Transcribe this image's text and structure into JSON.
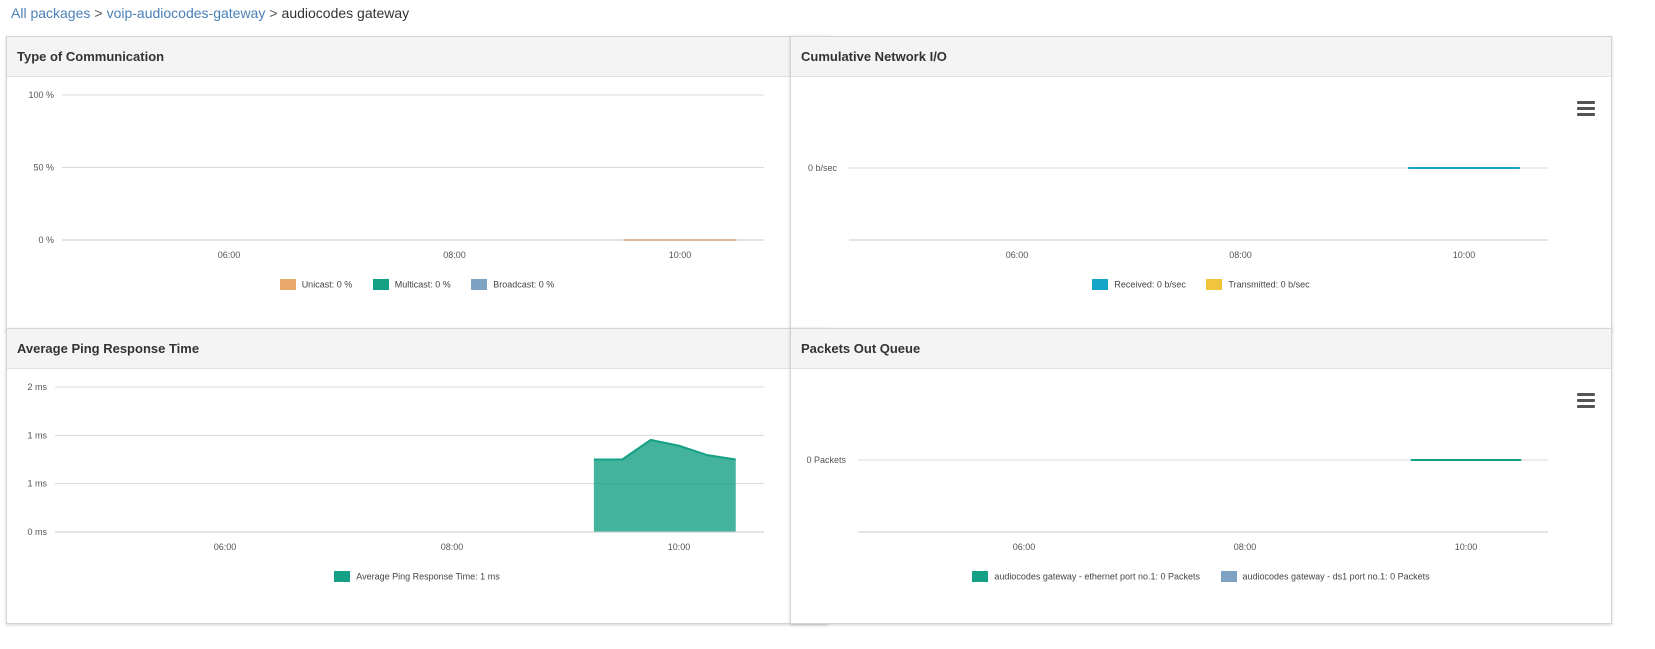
{
  "breadcrumb": {
    "items": [
      "All packages",
      "voip-audiocodes-gateway"
    ],
    "current": "audiocodes gateway",
    "separator": ">"
  },
  "colors": {
    "unicast": "#e8a86c",
    "multicast": "#14a085",
    "broadcast": "#7ea3c2",
    "received": "#14a5c8",
    "transmitted": "#f0c43c",
    "ping": "#14a085",
    "eth_port": "#14a085",
    "ds1_port": "#7ea3c2"
  },
  "panels": {
    "type_of_communication": {
      "title": "Type of Communication",
      "legend": [
        "Unicast: 0 %",
        "Multicast: 0 %",
        "Broadcast: 0 %"
      ]
    },
    "cumulative_network_io": {
      "title": "Cumulative Network I/O",
      "legend": [
        "Received: 0 b/sec",
        "Transmitted: 0 b/sec"
      ]
    },
    "average_ping": {
      "title": "Average Ping Response Time",
      "legend": [
        "Average Ping Response Time: 1 ms"
      ]
    },
    "packets_out_queue": {
      "title": "Packets Out Queue",
      "legend": [
        "audiocodes gateway - ethernet port no.1: 0 Packets",
        "audiocodes gateway - ds1 port no.1: 0 Packets"
      ]
    }
  },
  "chart_data": [
    {
      "type": "area",
      "title": "Type of Communication",
      "x_ticks": [
        "06:00",
        "08:00",
        "10:00"
      ],
      "y_ticks": [
        "0 %",
        "50 %",
        "100 %"
      ],
      "ylim": [
        0,
        100
      ],
      "series": [
        {
          "name": "Unicast",
          "x": [
            "09:30",
            "10:30"
          ],
          "values": [
            0,
            0
          ]
        },
        {
          "name": "Multicast",
          "x": [],
          "values": []
        },
        {
          "name": "Broadcast",
          "x": [],
          "values": []
        }
      ]
    },
    {
      "type": "line",
      "title": "Cumulative Network I/O",
      "x_ticks": [
        "06:00",
        "08:00",
        "10:00"
      ],
      "y_ticks": [
        "0 b/sec"
      ],
      "series": [
        {
          "name": "Received",
          "x": [
            "09:30",
            "10:30"
          ],
          "values": [
            0,
            0
          ]
        },
        {
          "name": "Transmitted",
          "x": [],
          "values": []
        }
      ]
    },
    {
      "type": "area",
      "title": "Average Ping Response Time",
      "x_ticks": [
        "06:00",
        "08:00",
        "10:00"
      ],
      "y_ticks": [
        "0 ms",
        "1 ms",
        "1 ms",
        "2 ms"
      ],
      "ylim": [
        0,
        2
      ],
      "series": [
        {
          "name": "Average Ping Response Time",
          "x": [
            "09:15",
            "09:30",
            "09:45",
            "10:00",
            "10:15",
            "10:30"
          ],
          "values": [
            1.0,
            1.0,
            1.27,
            1.19,
            1.06,
            1.0
          ]
        }
      ]
    },
    {
      "type": "line",
      "title": "Packets Out Queue",
      "x_ticks": [
        "06:00",
        "08:00",
        "10:00"
      ],
      "y_ticks": [
        "0 Packets"
      ],
      "series": [
        {
          "name": "audiocodes gateway - ethernet port no.1",
          "x": [
            "09:30",
            "10:30"
          ],
          "values": [
            0,
            0
          ]
        },
        {
          "name": "audiocodes gateway - ds1 port no.1",
          "x": [],
          "values": []
        }
      ]
    }
  ]
}
